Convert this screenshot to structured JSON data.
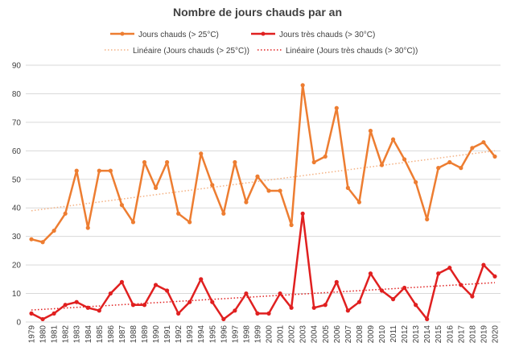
{
  "chart_data": {
    "type": "line",
    "title": "Nombre de jours chauds par an",
    "xlabel": "",
    "ylabel": "",
    "ylim": [
      0,
      90
    ],
    "yticks": [
      0,
      10,
      20,
      30,
      40,
      50,
      60,
      70,
      80,
      90
    ],
    "grid": true,
    "legend_position": "top",
    "categories": [
      "1979",
      "1980",
      "1981",
      "1982",
      "1983",
      "1984",
      "1985",
      "1986",
      "1987",
      "1988",
      "1989",
      "1990",
      "1991",
      "1992",
      "1993",
      "1994",
      "1995",
      "1996",
      "1997",
      "1998",
      "1999",
      "2000",
      "2001",
      "2002",
      "2003",
      "2004",
      "2005",
      "2006",
      "2007",
      "2008",
      "2009",
      "2010",
      "2011",
      "2012",
      "2013",
      "2014",
      "2015",
      "2016",
      "2017",
      "2018",
      "2019",
      "2020"
    ],
    "series": [
      {
        "name": "Jours chauds (> 25°C)",
        "color": "#ed7d31",
        "values": [
          29,
          28,
          32,
          38,
          53,
          33,
          53,
          53,
          41,
          35,
          56,
          47,
          56,
          38,
          35,
          59,
          48,
          38,
          56,
          42,
          51,
          46,
          46,
          34,
          83,
          56,
          58,
          75,
          47,
          42,
          67,
          55,
          64,
          57,
          49,
          36,
          54,
          56,
          54,
          61,
          63,
          58
        ]
      },
      {
        "name": "Jours très chauds (> 30°C)",
        "color": "#e02020",
        "values": [
          3,
          1,
          3,
          6,
          7,
          5,
          4,
          10,
          14,
          6,
          6,
          13,
          11,
          3,
          7,
          15,
          7,
          1,
          4,
          10,
          3,
          3,
          10,
          5,
          38,
          5,
          6,
          14,
          4,
          7,
          17,
          11,
          8,
          12,
          6,
          1,
          17,
          19,
          13,
          9,
          20,
          16
        ]
      }
    ],
    "trendlines": [
      {
        "name": "Linéaire (Jours chauds (> 25°C))",
        "color": "#f4b183",
        "start": 39,
        "end": 60
      },
      {
        "name": "Linéaire (Jours très chauds (> 30°C))",
        "color": "#e02020",
        "start": 4.2,
        "end": 13.8
      }
    ]
  }
}
